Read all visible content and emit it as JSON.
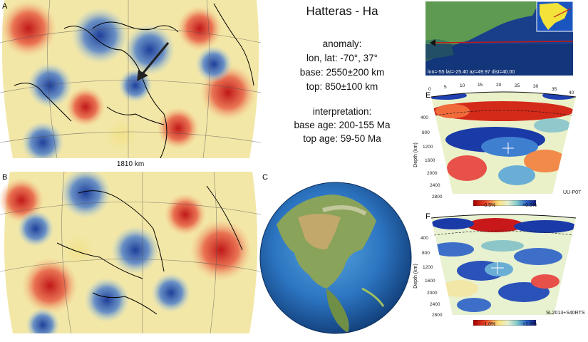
{
  "title": "Hatteras - Ha",
  "anomaly": {
    "heading": "anomaly:",
    "lonlat": "lon, lat: -70°, 37°",
    "base": "base: 2550±200 km",
    "top": "top: 850±100 km"
  },
  "interpretation": {
    "heading": "interpretation:",
    "base_age": "base age: 200-155 Ma",
    "top_age": "top age: 59-50 Ma"
  },
  "panels": {
    "a": "A",
    "b": "B",
    "c": "C",
    "d": "D",
    "e": "E",
    "f": "F"
  },
  "map_a_depth": "1810 km",
  "section_d_readout": "lon=-55 lat=-25.40 az=49.97 dist=40.00",
  "section_e": {
    "top_ticks": [
      "0",
      "5",
      "10",
      "15",
      "20",
      "25",
      "30",
      "35",
      "40"
    ],
    "depth_ticks": [
      "400",
      "800",
      "1200",
      "1600",
      "2000",
      "2400",
      "2800"
    ],
    "depth_label": "Depth (km)",
    "scale_min": "-0.5%",
    "scale_max": "+0.5%",
    "model": "UU-P07"
  },
  "section_f": {
    "depth_ticks": [
      "400",
      "800",
      "1200",
      "1600",
      "2000",
      "2400",
      "2800"
    ],
    "depth_label": "Depth (km)",
    "scale_min": "-1.0%",
    "scale_max": "+1.0%",
    "model": "SL2013+S40RTS"
  }
}
